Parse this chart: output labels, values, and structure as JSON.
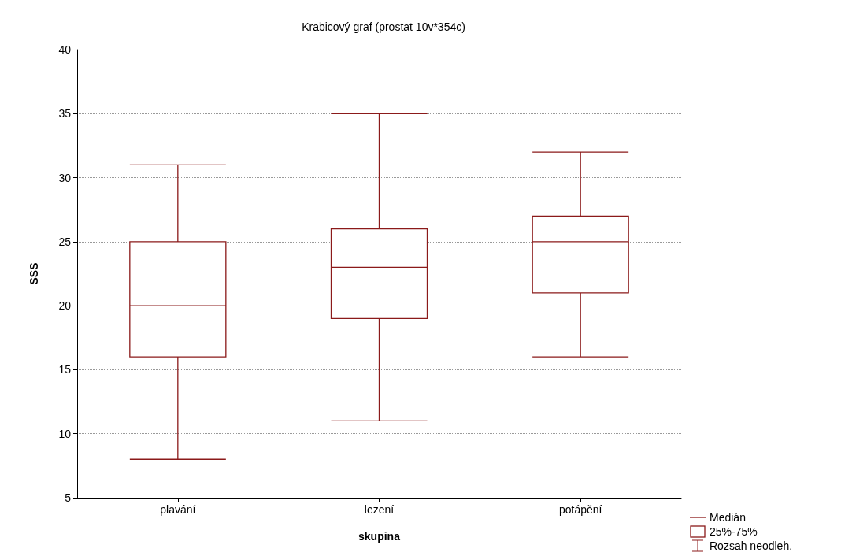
{
  "chart_data": {
    "type": "box",
    "title": "Krabicový graf (prostat 10v*354c)",
    "xlabel": "skupina",
    "ylabel": "SSS",
    "categories": [
      "plavání",
      "lezení",
      "potápění"
    ],
    "boxes": [
      {
        "low": 8,
        "q1": 16,
        "median": 20,
        "q3": 25,
        "high": 31
      },
      {
        "low": 11,
        "q1": 19,
        "median": 23,
        "q3": 26,
        "high": 35
      },
      {
        "low": 16,
        "q1": 21,
        "median": 25,
        "q3": 27,
        "high": 32
      }
    ],
    "color": "#8b1a1a",
    "ylim": [
      5,
      40
    ],
    "yticks": [
      5,
      10,
      15,
      20,
      25,
      30,
      35,
      40
    ],
    "grid": "y",
    "annotations": [
      "Medián",
      "25%-75%",
      "Rozsah neodleh."
    ]
  }
}
